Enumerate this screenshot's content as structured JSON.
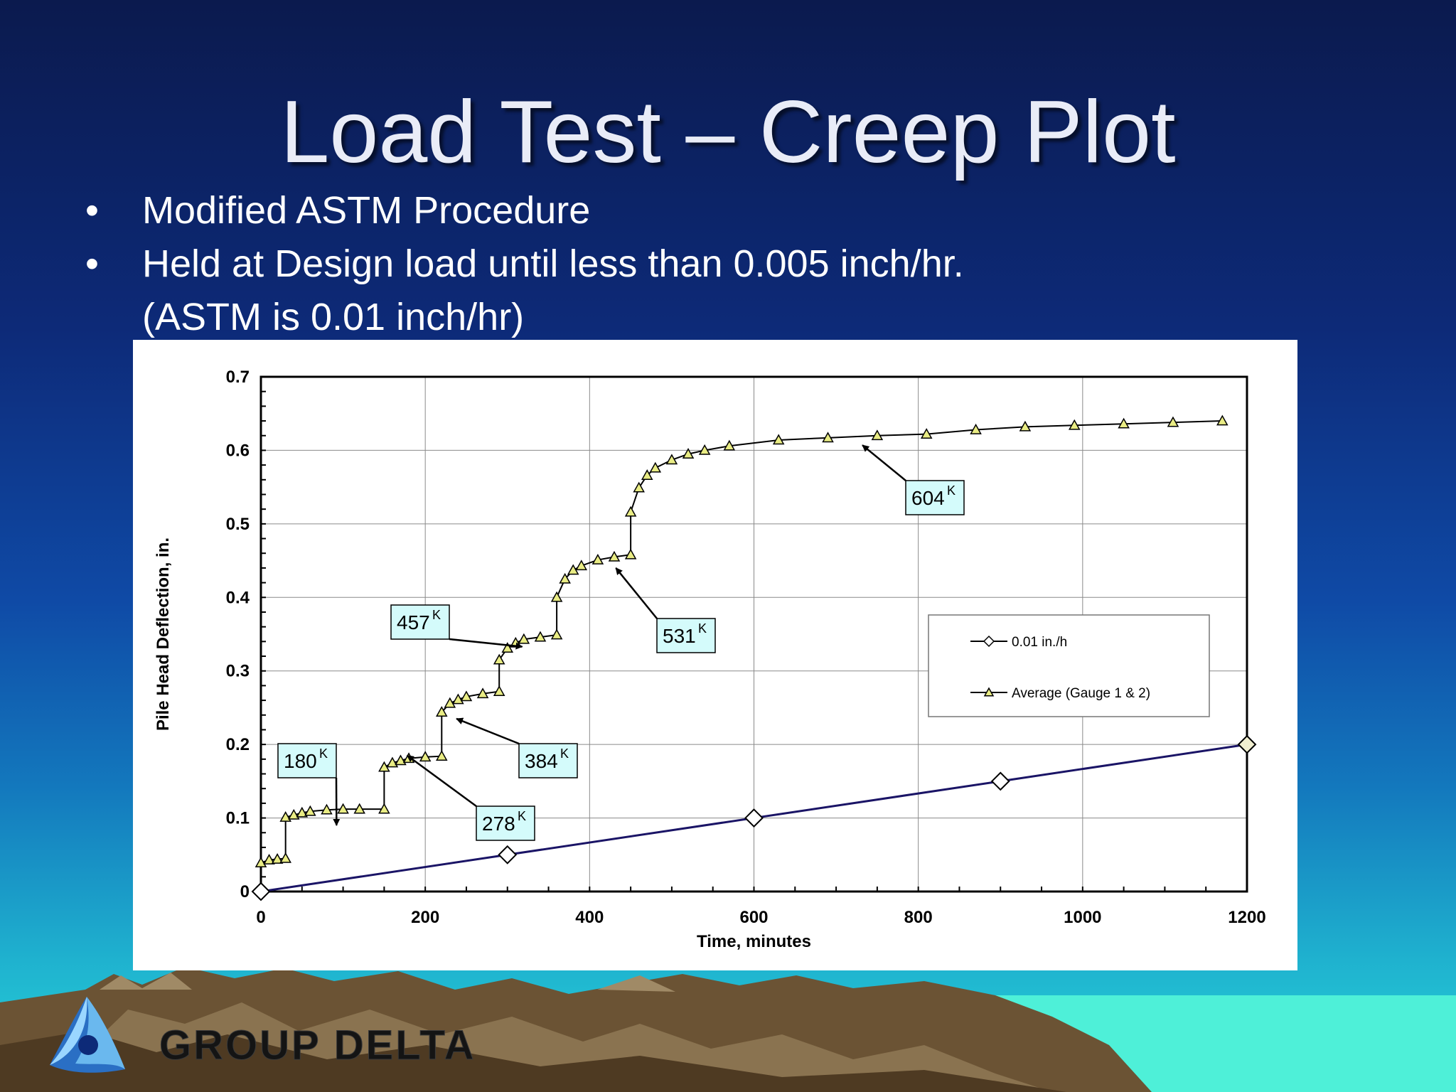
{
  "slide": {
    "title": "Load Test – Creep Plot",
    "bullets": [
      "Modified ASTM Procedure",
      "Held at Design load until less than 0.005 inch/hr."
    ],
    "bullet_continuation": "(ASTM is 0.01 inch/hr)",
    "logo_text": "GROUP DELTA"
  },
  "chart_data": {
    "type": "line",
    "xlabel": "Time, minutes",
    "ylabel": "Pile Head Deflection, in.",
    "xlim": [
      0,
      1200
    ],
    "ylim": [
      0,
      0.7
    ],
    "x_ticks": [
      "0",
      "200",
      "400",
      "600",
      "800",
      "1000",
      "1200"
    ],
    "y_ticks": [
      "0",
      "0.1",
      "0.2",
      "0.3",
      "0.4",
      "0.5",
      "0.6",
      "0.7"
    ],
    "grid": true,
    "legend_placement": "center-right",
    "series": [
      {
        "name": "0.01 in./h",
        "marker": "diamond",
        "color": "#1a1466",
        "x": [
          0,
          300,
          600,
          900,
          1200
        ],
        "y": [
          0,
          0.05,
          0.1,
          0.15,
          0.2
        ]
      },
      {
        "name": "Average (Gauge 1 & 2)",
        "marker": "triangle",
        "color": "#000000",
        "marker_fill": "#e9ec84",
        "x": [
          0,
          10,
          20,
          30,
          30,
          40,
          50,
          60,
          80,
          100,
          120,
          150,
          150,
          160,
          170,
          180,
          200,
          220,
          220,
          230,
          240,
          250,
          270,
          290,
          290,
          300,
          310,
          320,
          340,
          360,
          360,
          370,
          380,
          390,
          410,
          430,
          450,
          450,
          460,
          470,
          480,
          500,
          520,
          540,
          570,
          630,
          690,
          750,
          810,
          870,
          930,
          990,
          1050,
          1110,
          1170
        ],
        "y": [
          0.039,
          0.043,
          0.044,
          0.045,
          0.101,
          0.104,
          0.107,
          0.109,
          0.111,
          0.112,
          0.112,
          0.112,
          0.169,
          0.175,
          0.178,
          0.181,
          0.183,
          0.184,
          0.244,
          0.256,
          0.261,
          0.265,
          0.269,
          0.272,
          0.315,
          0.331,
          0.338,
          0.343,
          0.346,
          0.349,
          0.4,
          0.425,
          0.437,
          0.443,
          0.451,
          0.455,
          0.458,
          0.516,
          0.549,
          0.566,
          0.576,
          0.587,
          0.595,
          0.6,
          0.606,
          0.614,
          0.617,
          0.62,
          0.622,
          0.628,
          0.632,
          0.634,
          0.636,
          0.638,
          0.64
        ]
      }
    ],
    "annotations": [
      {
        "label": "180",
        "sup": "K",
        "target_x": 92,
        "target_y": 0.09
      },
      {
        "label": "278",
        "sup": "K",
        "target_x": 178,
        "target_y": 0.185
      },
      {
        "label": "384",
        "sup": "K",
        "target_x": 238,
        "target_y": 0.235
      },
      {
        "label": "457",
        "sup": "K",
        "target_x": 318,
        "target_y": 0.333
      },
      {
        "label": "531",
        "sup": "K",
        "target_x": 432,
        "target_y": 0.44
      },
      {
        "label": "604",
        "sup": "K",
        "target_x": 732,
        "target_y": 0.607
      }
    ]
  }
}
